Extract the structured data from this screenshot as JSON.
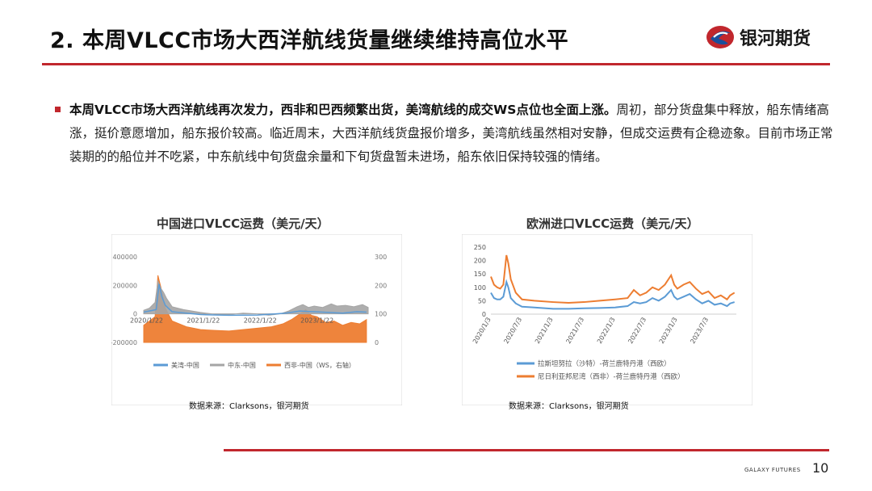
{
  "slide": {
    "title": "2. 本周VLCC市场大西洋航线货量继续维持高位水平",
    "logo_text": "银河期货",
    "para_bold": "本周VLCC市场大西洋航线再次发力，西非和巴西频繁出货，美湾航线的成交WS点位也全面上涨。",
    "para_rest": "周初，部分货盘集中释放，船东情绪高涨，挺价意愿增加，船东报价较高。临近周末，大西洋航线货盘报价增多，美湾航线虽然相对安静，但成交运费有企稳迹象。目前市场正常装期的的船位并不吃紧，中东航线中旬货盘余量和下旬货盘暂未进场，船东依旧保持较强的情绪。",
    "footer_brand": "GALAXY FUTURES",
    "page_number": "10",
    "accent_color": "#c1272d"
  },
  "chart_data": [
    {
      "type": "area",
      "title": "中国进口VLCC运费（美元/天）",
      "source": "数据来源：Clarksons，银河期货",
      "y_left": {
        "range": [
          -200000,
          400000
        ],
        "ticks": [
          "400000",
          "200000",
          "0",
          "-200000"
        ]
      },
      "y_right": {
        "range": [
          0,
          300
        ],
        "ticks": [
          "300",
          "200",
          "100",
          "0"
        ]
      },
      "x_ticks": [
        "2020/1/22",
        "2021/1/22",
        "2022/1/22",
        "2023/1/22"
      ],
      "series": [
        {
          "name": "美湾-中国",
          "color": "#5b9bd5",
          "axis": "left",
          "points": [
            [
              2020.0,
              12000
            ],
            [
              2020.22,
              30000
            ],
            [
              2020.27,
              210000
            ],
            [
              2020.32,
              120000
            ],
            [
              2020.38,
              60000
            ],
            [
              2020.5,
              15000
            ],
            [
              2020.75,
              5000
            ],
            [
              2021.0,
              -5000
            ],
            [
              2021.5,
              -10000
            ],
            [
              2022.0,
              -8000
            ],
            [
              2022.25,
              -2000
            ],
            [
              2022.5,
              5000
            ],
            [
              2022.75,
              20000
            ],
            [
              2023.0,
              15000
            ],
            [
              2023.25,
              10000
            ],
            [
              2023.5,
              5000
            ],
            [
              2023.75,
              15000
            ],
            [
              2023.92,
              12000
            ]
          ]
        },
        {
          "name": "中东-中国",
          "color": "#a5a5a5",
          "axis": "left",
          "points": [
            [
              2020.0,
              25000
            ],
            [
              2020.1,
              40000
            ],
            [
              2020.2,
              80000
            ],
            [
              2020.25,
              230000
            ],
            [
              2020.3,
              180000
            ],
            [
              2020.35,
              150000
            ],
            [
              2020.4,
              110000
            ],
            [
              2020.5,
              50000
            ],
            [
              2020.7,
              30000
            ],
            [
              2021.0,
              10000
            ],
            [
              2021.25,
              -2000
            ],
            [
              2021.5,
              -5000
            ],
            [
              2021.75,
              5000
            ],
            [
              2022.0,
              0
            ],
            [
              2022.2,
              -10000
            ],
            [
              2022.4,
              0
            ],
            [
              2022.55,
              20000
            ],
            [
              2022.7,
              50000
            ],
            [
              2022.8,
              65000
            ],
            [
              2022.9,
              45000
            ],
            [
              2023.0,
              55000
            ],
            [
              2023.15,
              45000
            ],
            [
              2023.3,
              70000
            ],
            [
              2023.4,
              55000
            ],
            [
              2023.55,
              60000
            ],
            [
              2023.7,
              50000
            ],
            [
              2023.85,
              65000
            ],
            [
              2023.95,
              45000
            ]
          ]
        },
        {
          "name": "西非-中国（WS，右轴）",
          "color": "#ed7d31",
          "axis": "right",
          "points": [
            [
              2020.0,
              60
            ],
            [
              2020.1,
              75
            ],
            [
              2020.2,
              90
            ],
            [
              2020.25,
              235
            ],
            [
              2020.3,
              195
            ],
            [
              2020.38,
              120
            ],
            [
              2020.5,
              75
            ],
            [
              2020.75,
              55
            ],
            [
              2021.0,
              45
            ],
            [
              2021.25,
              42
            ],
            [
              2021.5,
              40
            ],
            [
              2021.75,
              45
            ],
            [
              2022.0,
              50
            ],
            [
              2022.25,
              55
            ],
            [
              2022.45,
              65
            ],
            [
              2022.6,
              80
            ],
            [
              2022.75,
              100
            ],
            [
              2022.85,
              115
            ],
            [
              2022.95,
              95
            ],
            [
              2023.05,
              90
            ],
            [
              2023.2,
              70
            ],
            [
              2023.35,
              75
            ],
            [
              2023.5,
              60
            ],
            [
              2023.65,
              70
            ],
            [
              2023.8,
              65
            ],
            [
              2023.92,
              80
            ]
          ]
        }
      ]
    },
    {
      "type": "line",
      "title": "欧洲进口VLCC运费（美元/天）",
      "source": "数据来源：Clarksons，银河期货",
      "y_range": [
        0,
        250
      ],
      "y_ticks": [
        "250",
        "200",
        "150",
        "100",
        "50",
        "0"
      ],
      "x_ticks": [
        "2020/1/3",
        "2020/7/3",
        "2021/1/3",
        "2021/7/3",
        "2022/1/3",
        "2022/7/3",
        "2023/1/3",
        "2023/7/3"
      ],
      "series": [
        {
          "name": "拉斯坦努拉（沙特）-荷兰鹿特丹港（西欧）",
          "color": "#5b9bd5",
          "points": [
            [
              2020.0,
              80
            ],
            [
              2020.05,
              60
            ],
            [
              2020.1,
              55
            ],
            [
              2020.15,
              55
            ],
            [
              2020.2,
              65
            ],
            [
              2020.25,
              120
            ],
            [
              2020.28,
              100
            ],
            [
              2020.32,
              60
            ],
            [
              2020.4,
              40
            ],
            [
              2020.5,
              28
            ],
            [
              2020.7,
              25
            ],
            [
              2021.0,
              20
            ],
            [
              2021.25,
              20
            ],
            [
              2021.5,
              22
            ],
            [
              2021.75,
              23
            ],
            [
              2022.0,
              25
            ],
            [
              2022.2,
              30
            ],
            [
              2022.3,
              45
            ],
            [
              2022.4,
              40
            ],
            [
              2022.5,
              45
            ],
            [
              2022.6,
              60
            ],
            [
              2022.7,
              50
            ],
            [
              2022.8,
              65
            ],
            [
              2022.9,
              90
            ],
            [
              2022.95,
              65
            ],
            [
              2023.0,
              55
            ],
            [
              2023.1,
              65
            ],
            [
              2023.2,
              75
            ],
            [
              2023.3,
              55
            ],
            [
              2023.4,
              40
            ],
            [
              2023.5,
              50
            ],
            [
              2023.6,
              35
            ],
            [
              2023.7,
              40
            ],
            [
              2023.8,
              30
            ],
            [
              2023.85,
              40
            ],
            [
              2023.92,
              45
            ]
          ]
        },
        {
          "name": "尼日利亚邦尼湾（西非）-荷兰鹿特丹港（西欧）",
          "color": "#ed7d31",
          "points": [
            [
              2020.0,
              140
            ],
            [
              2020.05,
              110
            ],
            [
              2020.1,
              100
            ],
            [
              2020.15,
              95
            ],
            [
              2020.2,
              110
            ],
            [
              2020.25,
              220
            ],
            [
              2020.28,
              190
            ],
            [
              2020.32,
              130
            ],
            [
              2020.4,
              80
            ],
            [
              2020.5,
              55
            ],
            [
              2020.7,
              50
            ],
            [
              2021.0,
              45
            ],
            [
              2021.25,
              42
            ],
            [
              2021.5,
              45
            ],
            [
              2021.75,
              50
            ],
            [
              2022.0,
              55
            ],
            [
              2022.2,
              60
            ],
            [
              2022.3,
              90
            ],
            [
              2022.4,
              70
            ],
            [
              2022.5,
              80
            ],
            [
              2022.6,
              100
            ],
            [
              2022.7,
              90
            ],
            [
              2022.8,
              110
            ],
            [
              2022.9,
              145
            ],
            [
              2022.95,
              110
            ],
            [
              2023.0,
              95
            ],
            [
              2023.1,
              110
            ],
            [
              2023.2,
              120
            ],
            [
              2023.3,
              95
            ],
            [
              2023.4,
              75
            ],
            [
              2023.5,
              85
            ],
            [
              2023.6,
              60
            ],
            [
              2023.7,
              70
            ],
            [
              2023.8,
              55
            ],
            [
              2023.85,
              70
            ],
            [
              2023.92,
              80
            ]
          ]
        }
      ]
    }
  ]
}
